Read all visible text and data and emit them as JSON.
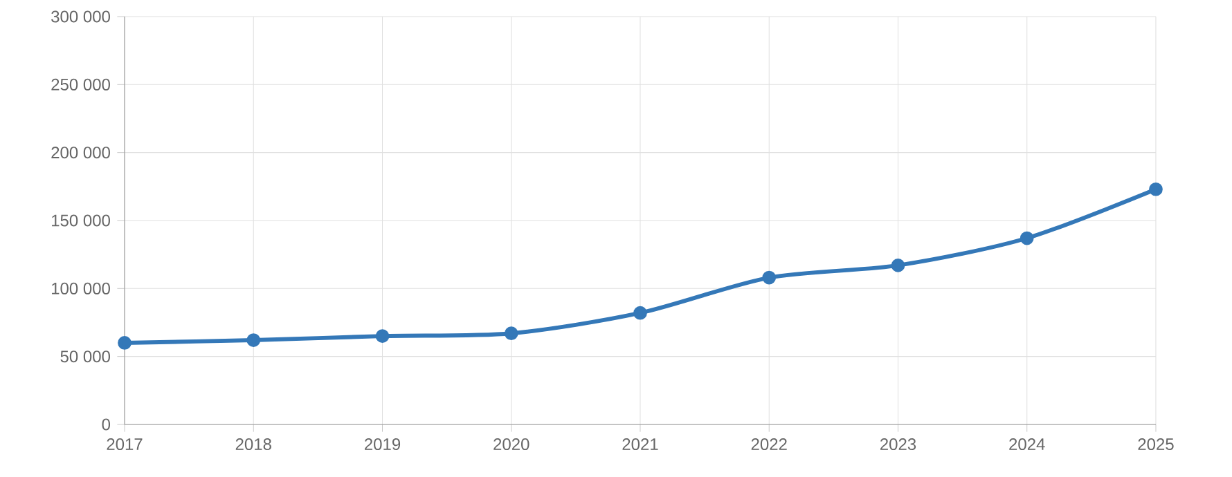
{
  "chart_data": {
    "type": "line",
    "x": [
      2017,
      2018,
      2019,
      2020,
      2021,
      2022,
      2023,
      2024,
      2025
    ],
    "series": [
      {
        "color": "#3478b8",
        "values": [
          60000,
          62000,
          65000,
          67000,
          82000,
          108000,
          117000,
          137000,
          173000
        ]
      }
    ],
    "xlim": [
      2017,
      2025
    ],
    "xticks": [
      2017,
      2018,
      2019,
      2020,
      2021,
      2022,
      2023,
      2024,
      2025
    ],
    "ylim": [
      0,
      300000
    ],
    "yticks": [
      0,
      {
        "value": 50000,
        "label": "50 000"
      },
      {
        "value": 100000,
        "label": "100 000"
      },
      {
        "value": 150000,
        "label": "150 000"
      },
      {
        "value": 200000,
        "label": "200 000"
      },
      {
        "value": 250000,
        "label": "250 000"
      },
      {
        "value": 300000,
        "label": "300 000"
      }
    ],
    "grid": true,
    "marker": "circle",
    "line_style": "solid"
  }
}
